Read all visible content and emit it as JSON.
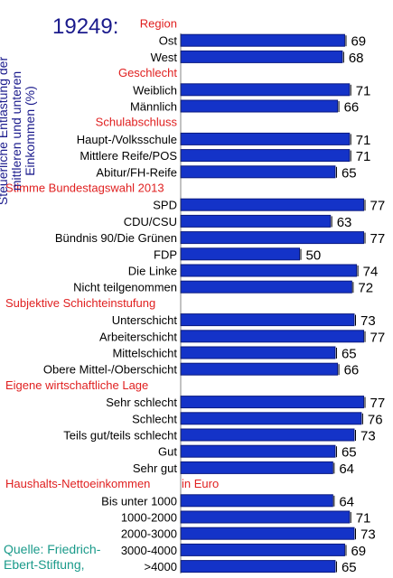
{
  "chart_data": {
    "type": "bar",
    "orientation": "horizontal",
    "id_label": "19249:",
    "ylabel": "Steuerliche Entlastung der mittleren und unteren Einkommen (%)",
    "source": "Quelle: Friedrich-Ebert-Stiftung,",
    "bar_color": "#1433c8",
    "group_color": "#e02020",
    "xlim": [
      0,
      80
    ],
    "groups": [
      {
        "title": "Region",
        "items": [
          {
            "label": "Ost",
            "value": 69
          },
          {
            "label": "West",
            "value": 68
          }
        ]
      },
      {
        "title": "Geschlecht",
        "items": [
          {
            "label": "Weiblich",
            "value": 71
          },
          {
            "label": "Männlich",
            "value": 66
          }
        ]
      },
      {
        "title": "Schulabschluss",
        "items": [
          {
            "label": "Haupt-/Volksschule",
            "value": 71
          },
          {
            "label": "Mittlere Reife/POS",
            "value": 71
          },
          {
            "label": "Abitur/FH-Reife",
            "value": 65
          }
        ]
      },
      {
        "title": "Stimme  Bundestagswahl 2013",
        "items": [
          {
            "label": "SPD",
            "value": 77
          },
          {
            "label": "CDU/CSU",
            "value": 63
          },
          {
            "label": "Bündnis 90/Die Grünen",
            "value": 77
          },
          {
            "label": "FDP",
            "value": 50
          },
          {
            "label": "Die Linke",
            "value": 74
          },
          {
            "label": "Nicht teilgenommen",
            "value": 72
          }
        ]
      },
      {
        "title": "Subjektive Schichteinstufung",
        "items": [
          {
            "label": "Unterschicht",
            "value": 73
          },
          {
            "label": "Arbeiterschicht",
            "value": 77
          },
          {
            "label": "Mittelschicht",
            "value": 65
          },
          {
            "label": "Obere Mittel-/Oberschicht",
            "value": 66
          }
        ]
      },
      {
        "title": "Eigene wirtschaftliche Lage",
        "items": [
          {
            "label": "Sehr schlecht",
            "value": 77
          },
          {
            "label": "Schlecht",
            "value": 76
          },
          {
            "label": "Teils gut/teils schlecht",
            "value": 73
          },
          {
            "label": "Gut",
            "value": 65
          },
          {
            "label": "Sehr gut",
            "value": 64
          }
        ]
      },
      {
        "title": "Haushalts-Nettoeinkommen",
        "title_suffix": "in Euro",
        "items": [
          {
            "label": "Bis unter 1000",
            "value": 64
          },
          {
            "label": "1000-2000",
            "value": 71
          },
          {
            "label": "2000-3000",
            "value": 73
          },
          {
            "label": "3000-4000",
            "value": 69
          },
          {
            "label": ">4000",
            "value": 65
          }
        ]
      }
    ]
  }
}
